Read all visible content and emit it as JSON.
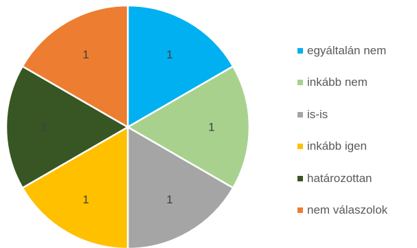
{
  "chart_data": {
    "type": "pie",
    "categories": [
      "egyáltalán nem",
      "inkább nem",
      "is-is",
      "inkább igen",
      "határozottan",
      "nem válaszolok"
    ],
    "values": [
      1,
      1,
      1,
      1,
      1,
      1
    ],
    "colors": [
      "#00B0F0",
      "#A9D18E",
      "#A5A5A5",
      "#FFC000",
      "#375623",
      "#ED7D31"
    ],
    "data_labels": [
      "1",
      "1",
      "1",
      "1",
      "1",
      "1"
    ],
    "legend_placement": "right",
    "start_angle": "12 o'clock",
    "direction": "clockwise",
    "title": ""
  }
}
